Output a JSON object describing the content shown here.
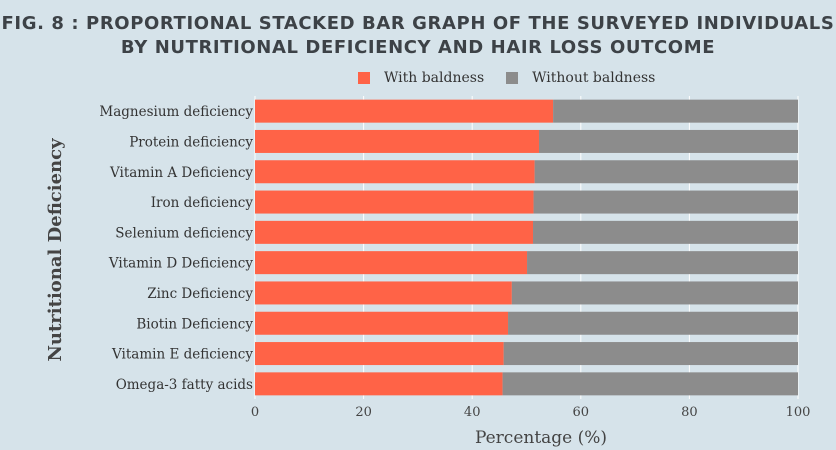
{
  "figure": {
    "title_line1": "FIG. 8 : PROPORTIONAL STACKED BAR GRAPH OF THE SURVEYED INDIVIDUALS",
    "title_line2": "BY NUTRITIONAL DEFICIENCY AND HAIR LOSS OUTCOME"
  },
  "colors": {
    "with_baldness": "#ff6347",
    "without_baldness": "#8c8c8c",
    "background": "#d6e3ea",
    "grid": "#ffffff"
  },
  "chart_data": {
    "type": "bar",
    "orientation": "horizontal",
    "stacked": true,
    "title": "FIG. 8 : PROPORTIONAL STACKED BAR GRAPH OF THE SURVEYED INDIVIDUALS BY NUTRITIONAL DEFICIENCY AND HAIR LOSS OUTCOME",
    "xlabel": "Percentage (%)",
    "ylabel": "Nutritional Deficiency",
    "xlim": [
      0,
      100
    ],
    "xticks": [
      0,
      20,
      40,
      60,
      80,
      100
    ],
    "grid": true,
    "legend_position": "top",
    "categories": [
      "Magnesium deficiency",
      "Protein deficiency",
      "Vitamin A Deficiency",
      "Iron deficiency",
      "Selenium deficiency",
      "Vitamin D Deficiency",
      "Zinc Deficiency",
      "Biotin Deficiency",
      "Vitamin E deficiency",
      "Omega-3 fatty acids"
    ],
    "series": [
      {
        "name": "With baldness",
        "values": [
          54.9,
          52.3,
          51.5,
          51.3,
          51.2,
          50.1,
          47.3,
          46.6,
          45.8,
          45.6
        ]
      },
      {
        "name": "Without baldness",
        "values": [
          45.1,
          47.7,
          48.5,
          48.7,
          48.8,
          49.9,
          52.7,
          53.4,
          54.2,
          54.4
        ]
      }
    ]
  }
}
